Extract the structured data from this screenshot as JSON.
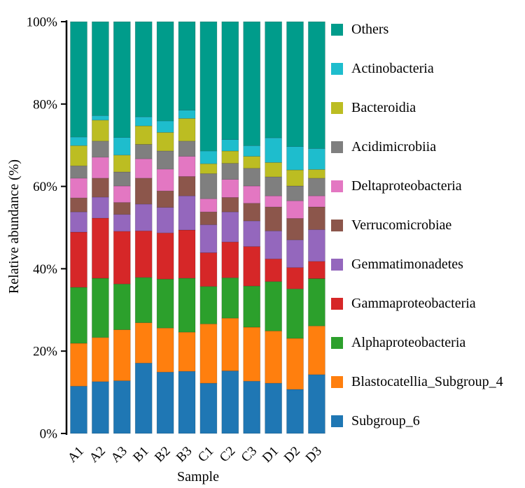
{
  "chart_data": {
    "type": "bar",
    "stacked": true,
    "title": "",
    "xlabel": "Sample",
    "ylabel": "Relative abundance (%)",
    "ylim": [
      0,
      100
    ],
    "grid": false,
    "legend_position": "right-outside",
    "legend_order": "top-to-bottom is reverse of stacking order",
    "ytick_values": [
      0,
      20,
      40,
      60,
      80,
      100
    ],
    "ytick_labels": [
      "0%",
      "20%",
      "40%",
      "60%",
      "80%",
      "100%"
    ],
    "categories": [
      "A1",
      "A2",
      "A3",
      "B1",
      "B2",
      "B3",
      "C1",
      "C2",
      "C3",
      "D1",
      "D2",
      "D3"
    ],
    "series_note": "series listed bottom-to-top; values are percent of each stacked bar",
    "series": [
      {
        "name": "Subgroup_6",
        "color": "#1f77b4",
        "values": [
          11.5,
          12.6,
          12.8,
          17.1,
          14.9,
          15.1,
          12.2,
          15.2,
          12.7,
          12.2,
          10.7,
          14.3
        ]
      },
      {
        "name": "Blastocatellia_Subgroup_4",
        "color": "#ff7f0e",
        "values": [
          10.4,
          10.7,
          12.4,
          9.8,
          10.7,
          9.5,
          14.4,
          12.8,
          13.1,
          12.7,
          12.4,
          11.8
        ]
      },
      {
        "name": "Alphaproteobacteria",
        "color": "#2ca02c",
        "values": [
          13.6,
          14.4,
          11.1,
          11.0,
          11.9,
          13.1,
          9.1,
          9.8,
          10.0,
          12.0,
          12.0,
          11.5
        ]
      },
      {
        "name": "Gammaproteobacteria",
        "color": "#d62728",
        "values": [
          13.4,
          14.6,
          12.8,
          11.3,
          11.2,
          11.7,
          8.2,
          8.7,
          9.6,
          5.5,
          5.2,
          4.2
        ]
      },
      {
        "name": "Gemmatimonadetes",
        "color": "#9467bd",
        "values": [
          4.9,
          5.1,
          4.1,
          6.5,
          6.2,
          8.3,
          6.8,
          7.3,
          6.2,
          6.8,
          6.7,
          7.7
        ]
      },
      {
        "name": "Verrucomicrobiae",
        "color": "#8c564b",
        "values": [
          3.4,
          4.6,
          2.9,
          6.3,
          4.0,
          4.7,
          3.1,
          3.5,
          4.3,
          5.8,
          5.2,
          5.5
        ]
      },
      {
        "name": "Deltaproteobacteria",
        "color": "#e377c2",
        "values": [
          4.8,
          5.1,
          4.0,
          4.7,
          5.3,
          4.9,
          3.2,
          4.4,
          4.2,
          2.7,
          4.3,
          2.7
        ]
      },
      {
        "name": "Acidimicrobiia",
        "color": "#7f7f7f",
        "values": [
          3.0,
          3.9,
          3.4,
          3.5,
          4.4,
          3.7,
          6.1,
          3.9,
          4.3,
          4.6,
          3.6,
          4.3
        ]
      },
      {
        "name": "Bacteroidia",
        "color": "#bcbd22",
        "values": [
          4.9,
          5.1,
          4.1,
          4.5,
          4.5,
          5.5,
          2.4,
          3.0,
          2.9,
          3.5,
          3.9,
          2.1
        ]
      },
      {
        "name": "Actinobacteria",
        "color": "#1ebdcd",
        "values": [
          2.1,
          1.1,
          4.3,
          2.2,
          2.8,
          2.0,
          3.1,
          2.8,
          2.6,
          6.0,
          5.7,
          5.1
        ]
      },
      {
        "name": "Others",
        "color": "#009c8b",
        "values": [
          28.0,
          22.8,
          28.1,
          23.1,
          24.1,
          21.5,
          31.4,
          28.6,
          30.1,
          28.2,
          30.3,
          30.8
        ]
      }
    ]
  }
}
